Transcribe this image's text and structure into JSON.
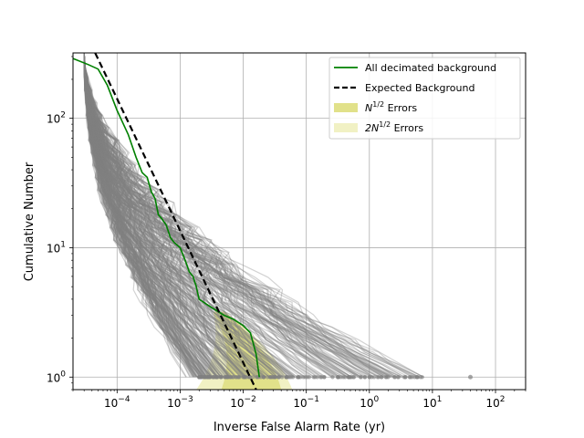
{
  "chart_data": {
    "type": "line",
    "xscale": "log",
    "yscale": "log",
    "xlim": [
      2e-05,
      300
    ],
    "ylim": [
      0.8,
      320
    ],
    "grid": true,
    "xlabel": "Inverse False Alarm Rate (yr)",
    "ylabel": "Cumulative Number",
    "legend_position": "top-right",
    "x_ticks": [
      {
        "value": 0.0001,
        "base": "10",
        "exp": "−4"
      },
      {
        "value": 0.001,
        "base": "10",
        "exp": "−3"
      },
      {
        "value": 0.01,
        "base": "10",
        "exp": "−2"
      },
      {
        "value": 0.1,
        "base": "10",
        "exp": "−1"
      },
      {
        "value": 1,
        "base": "10",
        "exp": "0"
      },
      {
        "value": 10,
        "base": "10",
        "exp": "1"
      },
      {
        "value": 100,
        "base": "10",
        "exp": "2"
      }
    ],
    "y_ticks": [
      {
        "value": 1,
        "base": "10",
        "exp": "0"
      },
      {
        "value": 10,
        "base": "10",
        "exp": "1"
      },
      {
        "value": 100,
        "base": "10",
        "exp": "2"
      }
    ],
    "legend": [
      {
        "label": "All decimated background",
        "sup": "",
        "suffix": "",
        "kind": "line",
        "color": "#008000",
        "dash": false
      },
      {
        "label": "Expected Background",
        "sup": "",
        "suffix": "",
        "kind": "line",
        "color": "#000000",
        "dash": true
      },
      {
        "label": "N",
        "sup": "1/2",
        "suffix": " Errors",
        "kind": "patch",
        "color": "#e1e18a"
      },
      {
        "label": "2N",
        "sup": "1/2",
        "suffix": " Errors",
        "kind": "patch",
        "color": "#f1f1c4"
      }
    ],
    "series": [
      {
        "name": "All decimated background",
        "color": "#008000",
        "x": [
          2e-05,
          3.5e-05,
          5e-05,
          7e-05,
          0.0001,
          0.00015,
          0.0002,
          0.00025,
          0.0003,
          0.00035,
          0.0004,
          0.00045,
          0.0005,
          0.0006,
          0.0007,
          0.0008,
          0.001,
          0.0012,
          0.0014,
          0.0016,
          0.0018,
          0.002,
          0.003,
          0.005,
          0.007,
          0.01,
          0.013,
          0.016,
          0.018
        ],
        "y": [
          290,
          260,
          240,
          180,
          115,
          75,
          50,
          38,
          35,
          27,
          24,
          18,
          17,
          15,
          12,
          11,
          10,
          8,
          6.5,
          6,
          5,
          4,
          3.5,
          3,
          2.8,
          2.5,
          2.2,
          1.5,
          1
        ]
      },
      {
        "name": "Expected Background",
        "color": "#000000",
        "dash": true,
        "x": [
          4.5e-05,
          0.016
        ],
        "y": [
          320,
          0.8
        ]
      }
    ],
    "background_curves": {
      "color": "#808080",
      "count": 300,
      "x_start": 3e-05,
      "y_start": 320,
      "end_x_range": [
        0.002,
        8
      ],
      "outlier_point": {
        "x": 40,
        "y": 1
      }
    },
    "error_bands": [
      {
        "name": "2N^1/2 Errors",
        "color": "#f1f1c4",
        "x_left_at_ymin": 0.0018,
        "x_right_at_ymin": 0.06
      },
      {
        "name": "N^1/2 Errors",
        "color": "#e1e18a",
        "x_left_at_ymin": 0.0045,
        "x_right_at_ymin": 0.04
      }
    ]
  }
}
